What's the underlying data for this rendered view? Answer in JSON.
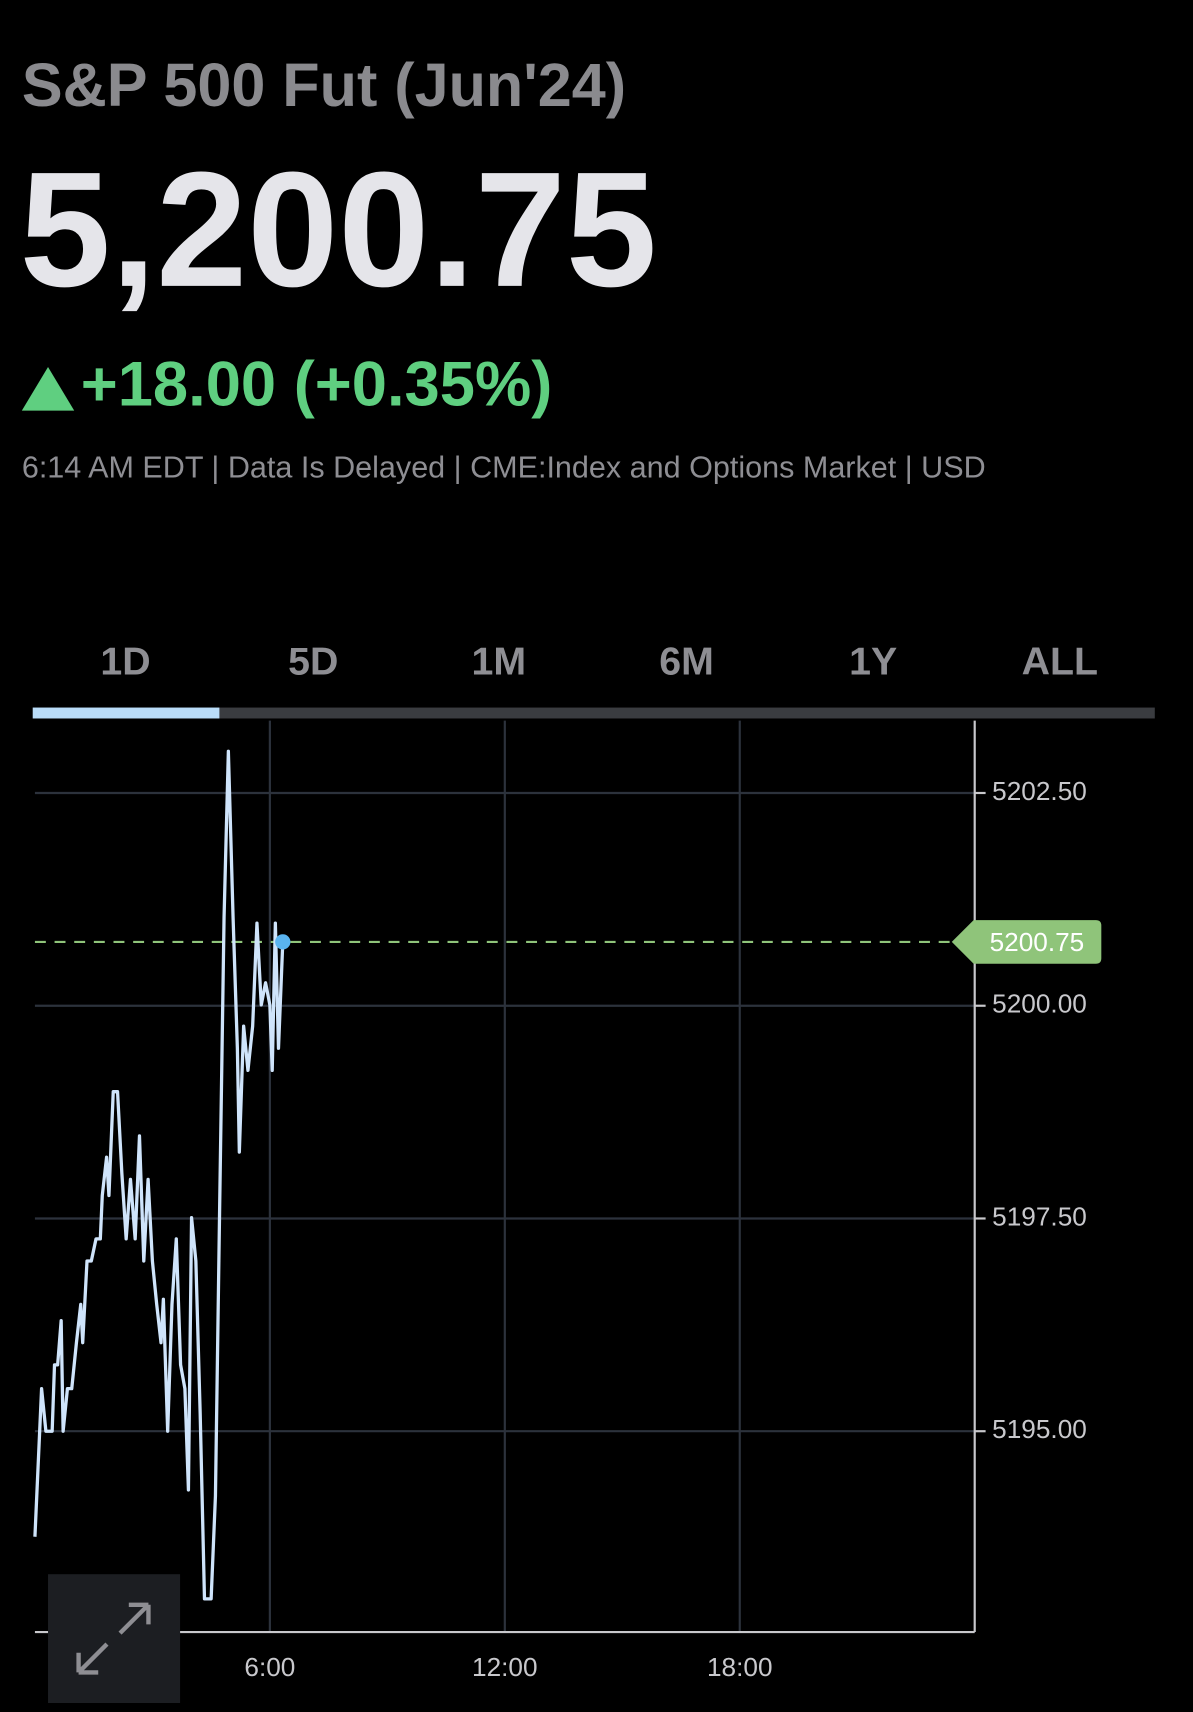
{
  "header": {
    "title": "S&P 500 Fut (Jun'24)",
    "price": "5,200.75",
    "change": "+18.00 (+0.35%)",
    "meta": "6:14 AM EDT | Data Is Delayed | CME:Index and Options Market | USD"
  },
  "tabs": [
    "1D",
    "5D",
    "1M",
    "6M",
    "1Y",
    "ALL"
  ],
  "chart_data": {
    "type": "line",
    "series": [
      {
        "color": "#cfe4fb",
        "x": [
          0,
          0.17,
          0.28,
          0.44,
          0.5,
          0.58,
          0.67,
          0.72,
          0.83,
          0.94,
          1.06,
          1.17,
          1.22,
          1.33,
          1.44,
          1.56,
          1.67,
          1.72,
          1.83,
          1.89,
          2.0,
          2.11,
          2.22,
          2.33,
          2.44,
          2.56,
          2.67,
          2.78,
          2.89,
          3.0,
          3.11,
          3.22,
          3.28,
          3.39,
          3.5,
          3.61,
          3.72,
          3.83,
          3.92,
          4.0,
          4.11,
          4.22,
          4.33,
          4.5,
          4.61,
          4.72,
          4.83,
          4.94,
          5.06,
          5.17,
          5.22,
          5.33,
          5.44,
          5.56,
          5.67,
          5.78,
          5.89,
          6.0,
          6.06,
          6.14,
          6.22,
          6.33
        ],
        "values": [
          5193.76,
          5195.5,
          5195.0,
          5195.0,
          5195.78,
          5195.78,
          5196.3,
          5195.0,
          5195.5,
          5195.5,
          5196.04,
          5196.49,
          5196.04,
          5197.0,
          5197.0,
          5197.26,
          5197.26,
          5197.77,
          5198.22,
          5197.77,
          5198.99,
          5198.99,
          5198.03,
          5197.26,
          5197.96,
          5197.26,
          5198.47,
          5197.0,
          5197.96,
          5197.0,
          5196.49,
          5196.04,
          5196.55,
          5195.0,
          5196.49,
          5197.26,
          5195.78,
          5195.5,
          5194.31,
          5197.51,
          5197.0,
          5195.21,
          5193.03,
          5193.03,
          5194.24,
          5197.71,
          5201.04,
          5202.99,
          5201.04,
          5199.5,
          5198.28,
          5199.76,
          5199.24,
          5199.76,
          5200.97,
          5200.01,
          5200.27,
          5200.01,
          5199.24,
          5200.97,
          5199.5,
          5200.75
        ]
      }
    ],
    "xlim": [
      0,
      24
    ],
    "xticks": [
      {
        "value": 6,
        "label": "6:00"
      },
      {
        "value": 12,
        "label": "12:00"
      },
      {
        "value": 18,
        "label": "18:00"
      }
    ],
    "ylim": [
      5192.64,
      5203.35
    ],
    "yticks": [
      {
        "value": 5195,
        "label": "5195.00"
      },
      {
        "value": 5197.5,
        "label": "5197.50"
      },
      {
        "value": 5200,
        "label": "5200.00"
      },
      {
        "value": 5202.5,
        "label": "5202.50"
      }
    ],
    "last_price": 5200.75,
    "last_color": "#8fc47a",
    "grid": true
  }
}
